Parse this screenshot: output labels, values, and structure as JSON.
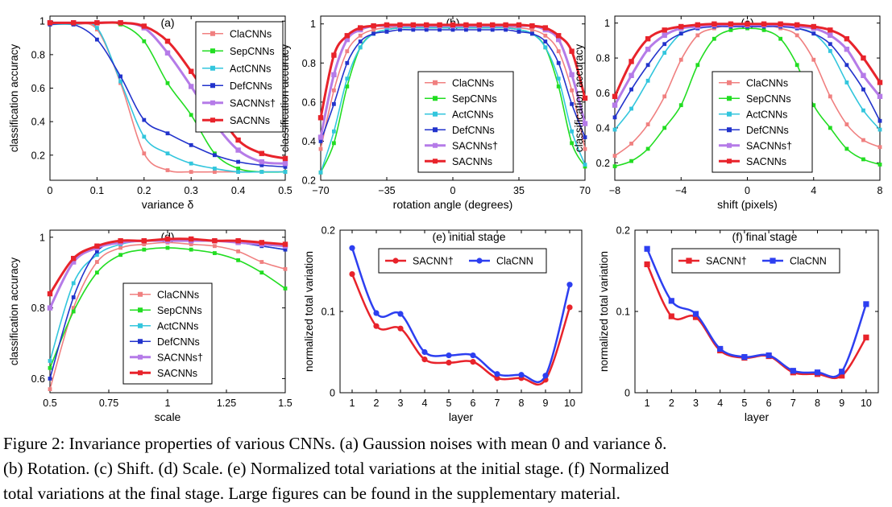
{
  "caption": "Figure 2: Invariance properties of various CNNs. (a) Gaussion noises with mean 0 and variance δ.\n(b) Rotation. (c) Shift. (d) Scale. (e) Normalized total variations at the initial stage. (f) Normalized\ntotal variations at the final stage. Large figures can be found in the supplementary material.",
  "colors": {
    "ClaCNNs": "#f08080",
    "SepCNNs": "#22dd22",
    "ActCNNs": "#33c6dd",
    "DefCNNs": "#2233cc",
    "SACNNsDagger": "#b57be8",
    "SACNNs": "#e8232b",
    "SACNN_e": "#e8232b",
    "ClaCNN_e": "#2d3ff0"
  },
  "chart_data": [
    {
      "id": "a",
      "type": "line",
      "title": "(a)",
      "xlabel": "variance δ",
      "ylabel": "classification accuracy",
      "xlim": [
        0,
        0.5
      ],
      "ylim": [
        0.05,
        1.03
      ],
      "xticks": [
        0,
        0.1,
        0.2,
        0.3,
        0.4,
        0.5
      ],
      "xticklabels": [
        "0",
        "0.1",
        "0.2",
        "0.3",
        "0.4",
        "0.5"
      ],
      "yticks": [
        0.2,
        0.4,
        0.6,
        0.8,
        1
      ],
      "yticklabels": [
        "0.2",
        "0.4",
        "0.6",
        "0.8",
        "1"
      ],
      "legend": "top-right",
      "legend_pos": "top-right",
      "x": [
        0,
        0.05,
        0.1,
        0.15,
        0.2,
        0.25,
        0.3,
        0.35,
        0.4,
        0.45,
        0.5
      ],
      "series": [
        {
          "name": "ClaCNNs",
          "key": "ClaCNNs",
          "values": [
            0.98,
            0.98,
            0.95,
            0.63,
            0.21,
            0.11,
            0.1,
            0.1,
            0.1,
            0.1,
            0.1
          ]
        },
        {
          "name": "SepCNNs",
          "key": "SepCNNs",
          "values": [
            0.99,
            0.99,
            0.99,
            0.98,
            0.88,
            0.63,
            0.44,
            0.21,
            0.12,
            0.1,
            0.1
          ]
        },
        {
          "name": "ActCNNs",
          "key": "ActCNNs",
          "values": [
            0.98,
            0.98,
            0.96,
            0.64,
            0.31,
            0.21,
            0.15,
            0.12,
            0.1,
            0.1,
            0.1
          ]
        },
        {
          "name": "DefCNNs",
          "key": "DefCNNs",
          "values": [
            0.98,
            0.98,
            0.89,
            0.67,
            0.41,
            0.33,
            0.26,
            0.2,
            0.16,
            0.14,
            0.13
          ]
        },
        {
          "name": "SACNNs†",
          "key": "SACNNsDagger",
          "values": [
            0.99,
            0.99,
            0.99,
            0.99,
            0.96,
            0.81,
            0.61,
            0.39,
            0.23,
            0.16,
            0.15
          ]
        },
        {
          "name": "SACNNs",
          "key": "SACNNs",
          "values": [
            0.99,
            0.99,
            0.99,
            0.99,
            0.97,
            0.88,
            0.7,
            0.49,
            0.29,
            0.21,
            0.18
          ]
        }
      ]
    },
    {
      "id": "b",
      "type": "line",
      "title": "(b)",
      "xlabel": "rotation angle (degrees)",
      "ylabel": "classification accuracy",
      "xlim": [
        -70,
        70
      ],
      "ylim": [
        0.2,
        1.04
      ],
      "xticks": [
        -70,
        -35,
        0,
        35,
        70
      ],
      "xticklabels": [
        "−70",
        "−35",
        "0",
        "35",
        "70"
      ],
      "yticks": [
        0.2,
        0.4,
        0.6,
        0.8,
        1
      ],
      "yticklabels": [
        "0.2",
        "0.4",
        "0.6",
        "0.8",
        "1"
      ],
      "legend": "center",
      "legend_pos": "center",
      "x": [
        -70,
        -63,
        -56,
        -49,
        -42,
        -35,
        -28,
        -21,
        -14,
        -7,
        0,
        7,
        14,
        21,
        28,
        35,
        42,
        49,
        56,
        63,
        70
      ],
      "series": [
        {
          "name": "ClaCNNs",
          "key": "ClaCNNs",
          "values": [
            0.36,
            0.66,
            0.86,
            0.94,
            0.97,
            0.98,
            0.985,
            0.985,
            0.985,
            0.985,
            0.985,
            0.985,
            0.985,
            0.985,
            0.985,
            0.98,
            0.97,
            0.94,
            0.86,
            0.66,
            0.36
          ]
        },
        {
          "name": "SepCNNs",
          "key": "SepCNNs",
          "values": [
            0.24,
            0.39,
            0.68,
            0.88,
            0.95,
            0.97,
            0.98,
            0.98,
            0.98,
            0.98,
            0.98,
            0.98,
            0.98,
            0.98,
            0.98,
            0.97,
            0.95,
            0.88,
            0.68,
            0.39,
            0.27
          ]
        },
        {
          "name": "ActCNNs",
          "key": "ActCNNs",
          "values": [
            0.24,
            0.45,
            0.72,
            0.88,
            0.95,
            0.97,
            0.98,
            0.98,
            0.98,
            0.98,
            0.98,
            0.98,
            0.98,
            0.98,
            0.98,
            0.97,
            0.95,
            0.88,
            0.72,
            0.45,
            0.28
          ]
        },
        {
          "name": "DefCNNs",
          "key": "DefCNNs",
          "values": [
            0.4,
            0.59,
            0.8,
            0.91,
            0.95,
            0.96,
            0.97,
            0.97,
            0.97,
            0.97,
            0.97,
            0.97,
            0.97,
            0.97,
            0.97,
            0.96,
            0.95,
            0.91,
            0.8,
            0.59,
            0.42
          ]
        },
        {
          "name": "SACNNs†",
          "key": "SACNNsDagger",
          "values": [
            0.42,
            0.74,
            0.92,
            0.97,
            0.99,
            0.99,
            0.99,
            0.99,
            0.99,
            0.99,
            0.99,
            0.99,
            0.99,
            0.99,
            0.99,
            0.99,
            0.99,
            0.97,
            0.92,
            0.74,
            0.49
          ]
        },
        {
          "name": "SACNNs",
          "key": "SACNNs",
          "values": [
            0.52,
            0.84,
            0.94,
            0.98,
            0.99,
            0.995,
            0.995,
            0.995,
            0.995,
            0.995,
            0.995,
            0.995,
            0.995,
            0.995,
            0.995,
            0.995,
            0.99,
            0.98,
            0.94,
            0.86,
            0.62
          ]
        }
      ]
    },
    {
      "id": "c",
      "type": "line",
      "title": "(c)",
      "xlabel": "shift (pixels)",
      "ylabel": "classification accuracy",
      "xlim": [
        -8,
        8
      ],
      "ylim": [
        0.1,
        1.04
      ],
      "xticks": [
        -8,
        -4,
        0,
        4,
        8
      ],
      "xticklabels": [
        "−8",
        "−4",
        "0",
        "4",
        "8"
      ],
      "yticks": [
        0.2,
        0.4,
        0.6,
        0.8,
        1
      ],
      "yticklabels": [
        "0.2",
        "0.4",
        "0.6",
        "0.8",
        "1"
      ],
      "legend": "center",
      "legend_pos": "center",
      "x": [
        -8,
        -7,
        -6,
        -5,
        -4,
        -3,
        -2,
        -1,
        0,
        1,
        2,
        3,
        4,
        5,
        6,
        7,
        8
      ],
      "series": [
        {
          "name": "ClaCNNs",
          "key": "ClaCNNs",
          "values": [
            0.24,
            0.31,
            0.42,
            0.58,
            0.79,
            0.93,
            0.97,
            0.99,
            0.99,
            0.99,
            0.97,
            0.93,
            0.79,
            0.58,
            0.42,
            0.33,
            0.29
          ]
        },
        {
          "name": "SepCNNs",
          "key": "SepCNNs",
          "values": [
            0.18,
            0.21,
            0.28,
            0.4,
            0.53,
            0.76,
            0.91,
            0.96,
            0.97,
            0.96,
            0.91,
            0.76,
            0.53,
            0.4,
            0.28,
            0.22,
            0.19
          ]
        },
        {
          "name": "ActCNNs",
          "key": "ActCNNs",
          "values": [
            0.39,
            0.51,
            0.67,
            0.83,
            0.94,
            0.97,
            0.98,
            0.99,
            0.99,
            0.99,
            0.98,
            0.97,
            0.94,
            0.84,
            0.66,
            0.5,
            0.39
          ]
        },
        {
          "name": "DefCNNs",
          "key": "DefCNNs",
          "values": [
            0.46,
            0.62,
            0.76,
            0.88,
            0.94,
            0.97,
            0.98,
            0.98,
            0.98,
            0.98,
            0.98,
            0.97,
            0.94,
            0.88,
            0.76,
            0.62,
            0.44
          ]
        },
        {
          "name": "SACNNs†",
          "key": "SACNNsDagger",
          "values": [
            0.53,
            0.7,
            0.85,
            0.93,
            0.97,
            0.98,
            0.99,
            0.99,
            0.99,
            0.99,
            0.99,
            0.98,
            0.97,
            0.93,
            0.85,
            0.7,
            0.58
          ]
        },
        {
          "name": "SACNNs",
          "key": "SACNNs",
          "values": [
            0.58,
            0.78,
            0.91,
            0.96,
            0.98,
            0.99,
            0.995,
            0.995,
            0.995,
            0.995,
            0.995,
            0.99,
            0.98,
            0.96,
            0.91,
            0.8,
            0.66
          ]
        }
      ]
    },
    {
      "id": "d",
      "type": "line",
      "title": "(d)",
      "xlabel": "scale",
      "ylabel": "classification accuracy",
      "xlim": [
        0.5,
        1.5
      ],
      "ylim": [
        0.56,
        1.02
      ],
      "xticks": [
        0.5,
        0.75,
        1,
        1.25,
        1.5
      ],
      "xticklabels": [
        "0.5",
        "0.75",
        "1",
        "1.25",
        "1.5"
      ],
      "yticks": [
        0.6,
        0.8,
        1
      ],
      "yticklabels": [
        "0.6",
        "0.8",
        "1"
      ],
      "legend": "center",
      "legend_pos": "center",
      "x": [
        0.5,
        0.6,
        0.7,
        0.8,
        0.9,
        1.0,
        1.1,
        1.2,
        1.3,
        1.4,
        1.5
      ],
      "series": [
        {
          "name": "ClaCNNs",
          "key": "ClaCNNs",
          "values": [
            0.57,
            0.8,
            0.93,
            0.97,
            0.98,
            0.985,
            0.98,
            0.975,
            0.96,
            0.93,
            0.91
          ]
        },
        {
          "name": "SepCNNs",
          "key": "SepCNNs",
          "values": [
            0.63,
            0.79,
            0.9,
            0.95,
            0.965,
            0.97,
            0.965,
            0.955,
            0.935,
            0.9,
            0.855
          ]
        },
        {
          "name": "ActCNNs",
          "key": "ActCNNs",
          "values": [
            0.65,
            0.87,
            0.95,
            0.98,
            0.99,
            0.99,
            0.99,
            0.99,
            0.985,
            0.975,
            0.965
          ]
        },
        {
          "name": "DefCNNs",
          "key": "DefCNNs",
          "values": [
            0.6,
            0.83,
            0.96,
            0.985,
            0.99,
            0.99,
            0.99,
            0.99,
            0.985,
            0.975,
            0.965
          ]
        },
        {
          "name": "SACNNs†",
          "key": "SACNNsDagger",
          "values": [
            0.8,
            0.93,
            0.97,
            0.985,
            0.99,
            0.99,
            0.99,
            0.99,
            0.985,
            0.98,
            0.975
          ]
        },
        {
          "name": "SACNNs",
          "key": "SACNNs",
          "values": [
            0.84,
            0.94,
            0.975,
            0.99,
            0.99,
            0.995,
            0.995,
            0.99,
            0.99,
            0.985,
            0.98
          ]
        }
      ]
    },
    {
      "id": "e",
      "type": "line",
      "title": "(e) initial stage",
      "xlabel": "layer",
      "ylabel": "normalized total variation",
      "xlim": [
        0.5,
        10.5
      ],
      "ylim": [
        0,
        0.2
      ],
      "xticks": [
        1,
        2,
        3,
        4,
        5,
        6,
        7,
        8,
        9,
        10
      ],
      "xticklabels": [
        "1",
        "2",
        "3",
        "4",
        "5",
        "6",
        "7",
        "8",
        "9",
        "10"
      ],
      "yticks": [
        0,
        0.1,
        0.2
      ],
      "yticklabels": [
        "0",
        "0.1",
        "0.2"
      ],
      "legend": "top-center",
      "legend_pos": "top-center",
      "marker": "circle",
      "x": [
        1,
        2,
        3,
        4,
        5,
        6,
        7,
        8,
        9,
        10
      ],
      "series": [
        {
          "name": "SACNN†",
          "key": "SACNN_e",
          "values": [
            0.146,
            0.082,
            0.079,
            0.041,
            0.037,
            0.038,
            0.018,
            0.018,
            0.016,
            0.105
          ]
        },
        {
          "name": "ClaCNN",
          "key": "ClaCNN_e",
          "values": [
            0.178,
            0.098,
            0.097,
            0.05,
            0.046,
            0.046,
            0.023,
            0.022,
            0.021,
            0.133
          ]
        }
      ]
    },
    {
      "id": "f",
      "type": "line",
      "title": "(f) final stage",
      "xlabel": "layer",
      "ylabel": "normalized total variation",
      "xlim": [
        0.5,
        10.5
      ],
      "ylim": [
        0,
        0.2
      ],
      "xticks": [
        1,
        2,
        3,
        4,
        5,
        6,
        7,
        8,
        9,
        10
      ],
      "xticklabels": [
        "1",
        "2",
        "3",
        "4",
        "5",
        "6",
        "7",
        "8",
        "9",
        "10"
      ],
      "yticks": [
        0,
        0.1,
        0.2
      ],
      "yticklabels": [
        "0",
        "0.1",
        "0.2"
      ],
      "legend": "top-center",
      "legend_pos": "top-center",
      "marker": "square",
      "x": [
        1,
        2,
        3,
        4,
        5,
        6,
        7,
        8,
        9,
        10
      ],
      "series": [
        {
          "name": "SACNN†",
          "key": "SACNN_e",
          "values": [
            0.158,
            0.094,
            0.093,
            0.052,
            0.043,
            0.045,
            0.025,
            0.023,
            0.021,
            0.068
          ]
        },
        {
          "name": "ClaCNN",
          "key": "ClaCNN_e",
          "values": [
            0.177,
            0.113,
            0.097,
            0.054,
            0.044,
            0.046,
            0.027,
            0.025,
            0.026,
            0.109
          ]
        }
      ]
    }
  ]
}
